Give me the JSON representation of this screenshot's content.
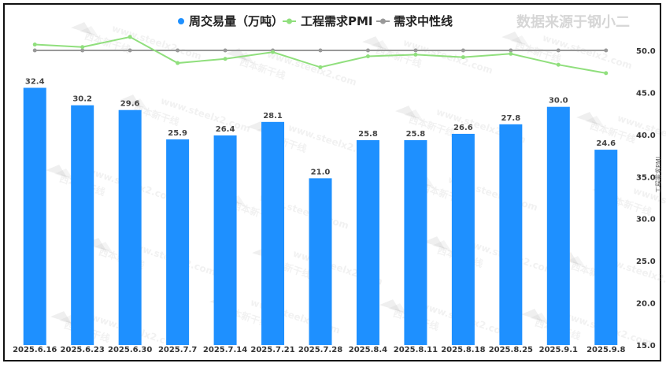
{
  "source_note": "数据来源于钢小二",
  "chart_data": {
    "type": "bar",
    "categories": [
      "2025.6.16",
      "2025.6.23",
      "2025.6.30",
      "2025.7.7",
      "2025.7.14",
      "2025.7.21",
      "2025.7.28",
      "2025.8.4",
      "2025.8.11",
      "2025.8.18",
      "2025.8.25",
      "2025.9.1",
      "2025.9.8"
    ],
    "series": [
      {
        "name": "周交易量（万吨）",
        "type": "bar",
        "color": "#1E90FF",
        "values": [
          32.4,
          30.2,
          29.6,
          25.9,
          26.4,
          28.1,
          21.0,
          25.8,
          25.8,
          26.6,
          27.8,
          30.0,
          24.6
        ],
        "labels": [
          "32.4",
          "30.2",
          "29.6",
          "25.9",
          "26.4",
          "28.1",
          "21.0",
          "25.8",
          "25.8",
          "26.6",
          "27.8",
          "30.0",
          "24.6"
        ]
      },
      {
        "name": "工程需求PMI",
        "type": "line",
        "color": "#90DF7D",
        "values": [
          50.7,
          50.4,
          51.6,
          48.5,
          49.0,
          49.8,
          48.0,
          49.3,
          49.5,
          49.2,
          49.6,
          48.3,
          47.3
        ]
      },
      {
        "name": "需求中性线",
        "type": "line",
        "color": "#999999",
        "values": [
          50,
          50,
          50,
          50,
          50,
          50,
          50,
          50,
          50,
          50,
          50,
          50,
          50
        ]
      }
    ],
    "xlabel": "",
    "ylabel": "",
    "y_left_label": "",
    "y_right_label": "工程需求PMI",
    "y_left_range": [
      0,
      38.7
    ],
    "y_right_ticks": [
      "15.0",
      "20.0",
      "25.0",
      "30.0",
      "35.0",
      "40.0",
      "45.0",
      "50.0"
    ],
    "y_right_range": [
      15,
      51.5
    ],
    "grid": false,
    "legend_position": "top-center"
  },
  "watermark": {
    "brand": "西本新干线",
    "site": "www.steelx2.com"
  }
}
